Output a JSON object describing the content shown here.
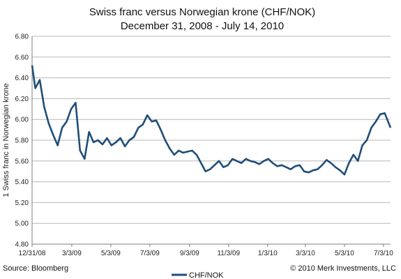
{
  "chart_data": {
    "type": "line",
    "title": "Swiss franc versus Norwegian krone (CHF/NOK)",
    "subtitle": "December 31, 2008 - July 14, 2010",
    "ylabel": "1 Swiss franc in Norwegian krone",
    "xlabel": "",
    "ylim": [
      4.8,
      6.8
    ],
    "y_ticks": [
      "4.80",
      "5.00",
      "5.20",
      "5.40",
      "5.60",
      "5.80",
      "6.00",
      "6.20",
      "6.40",
      "6.60",
      "6.80"
    ],
    "x_ticks": [
      "12/31/08",
      "3/3/09",
      "5/3/09",
      "7/3/09",
      "9/3/09",
      "11/3/09",
      "1/3/10",
      "3/3/10",
      "5/3/10",
      "7/3/10"
    ],
    "grid": true,
    "legend": "bottom",
    "source": "Source: Bloomberg",
    "copyright": "© 2010 Merk Investments, LLC",
    "series": [
      {
        "name": "CHF/NOK",
        "color": "#1f4e79",
        "x": [
          "12/31/08",
          "1/5/09",
          "1/12/09",
          "1/19/09",
          "1/26/09",
          "2/2/09",
          "2/9/09",
          "2/16/09",
          "2/23/09",
          "3/2/09",
          "3/9/09",
          "3/16/09",
          "3/23/09",
          "3/30/09",
          "4/6/09",
          "4/13/09",
          "4/20/09",
          "4/27/09",
          "5/4/09",
          "5/11/09",
          "5/18/09",
          "5/25/09",
          "6/1/09",
          "6/8/09",
          "6/15/09",
          "6/22/09",
          "6/29/09",
          "7/6/09",
          "7/13/09",
          "7/20/09",
          "7/27/09",
          "8/3/09",
          "8/10/09",
          "8/17/09",
          "8/24/09",
          "8/31/09",
          "9/7/09",
          "9/14/09",
          "9/21/09",
          "9/28/09",
          "10/5/09",
          "10/12/09",
          "10/19/09",
          "10/26/09",
          "11/2/09",
          "11/9/09",
          "11/16/09",
          "11/23/09",
          "11/30/09",
          "12/7/09",
          "12/14/09",
          "12/21/09",
          "12/28/09",
          "1/4/10",
          "1/11/10",
          "1/18/10",
          "1/25/10",
          "2/1/10",
          "2/8/10",
          "2/15/10",
          "2/22/10",
          "3/1/10",
          "3/8/10",
          "3/15/10",
          "3/22/10",
          "3/29/10",
          "4/5/10",
          "4/12/10",
          "4/19/10",
          "4/26/10",
          "5/3/10",
          "5/10/10",
          "5/17/10",
          "5/24/10",
          "5/31/10",
          "6/7/10",
          "6/14/10",
          "6/21/10",
          "6/28/10",
          "7/5/10",
          "7/14/10"
        ],
        "values": [
          6.52,
          6.3,
          6.38,
          6.12,
          5.96,
          5.85,
          5.75,
          5.92,
          5.98,
          6.1,
          6.16,
          5.7,
          5.62,
          5.88,
          5.78,
          5.8,
          5.76,
          5.82,
          5.75,
          5.78,
          5.82,
          5.74,
          5.8,
          5.83,
          5.92,
          5.95,
          6.04,
          5.98,
          5.99,
          5.9,
          5.8,
          5.72,
          5.66,
          5.7,
          5.68,
          5.69,
          5.7,
          5.66,
          5.58,
          5.5,
          5.52,
          5.56,
          5.6,
          5.54,
          5.56,
          5.62,
          5.6,
          5.58,
          5.62,
          5.6,
          5.59,
          5.57,
          5.6,
          5.62,
          5.58,
          5.55,
          5.56,
          5.54,
          5.52,
          5.55,
          5.56,
          5.5,
          5.49,
          5.51,
          5.52,
          5.56,
          5.61,
          5.58,
          5.54,
          5.51,
          5.47,
          5.58,
          5.66,
          5.6,
          5.75,
          5.8,
          5.92,
          5.98,
          6.05,
          6.06,
          5.92
        ]
      }
    ]
  }
}
